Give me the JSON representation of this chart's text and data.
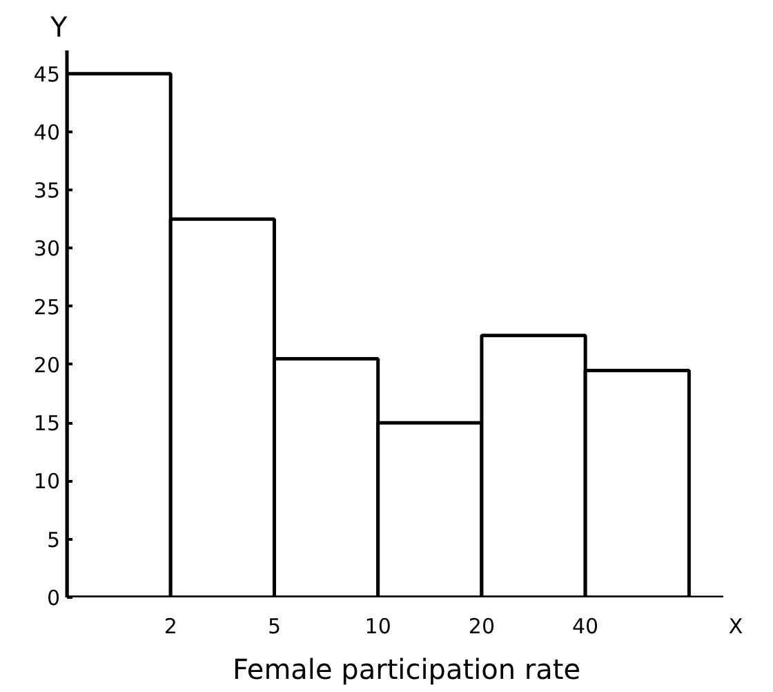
{
  "chart_data": {
    "type": "bar",
    "categories": [
      null,
      null,
      null,
      null,
      null,
      null
    ],
    "values": [
      45,
      32.5,
      20.5,
      15,
      22.5,
      19.5
    ],
    "color": "#ffffff",
    "ylim": [
      0,
      47
    ],
    "yticks": [
      0,
      5,
      10,
      15,
      20,
      25,
      30,
      35,
      40,
      45
    ],
    "xlabel": "Female participation rate",
    "ylabel": "Y",
    "annotations": [
      "2",
      "5",
      "10",
      "20",
      "40",
      "X"
    ],
    "grid": false
  }
}
